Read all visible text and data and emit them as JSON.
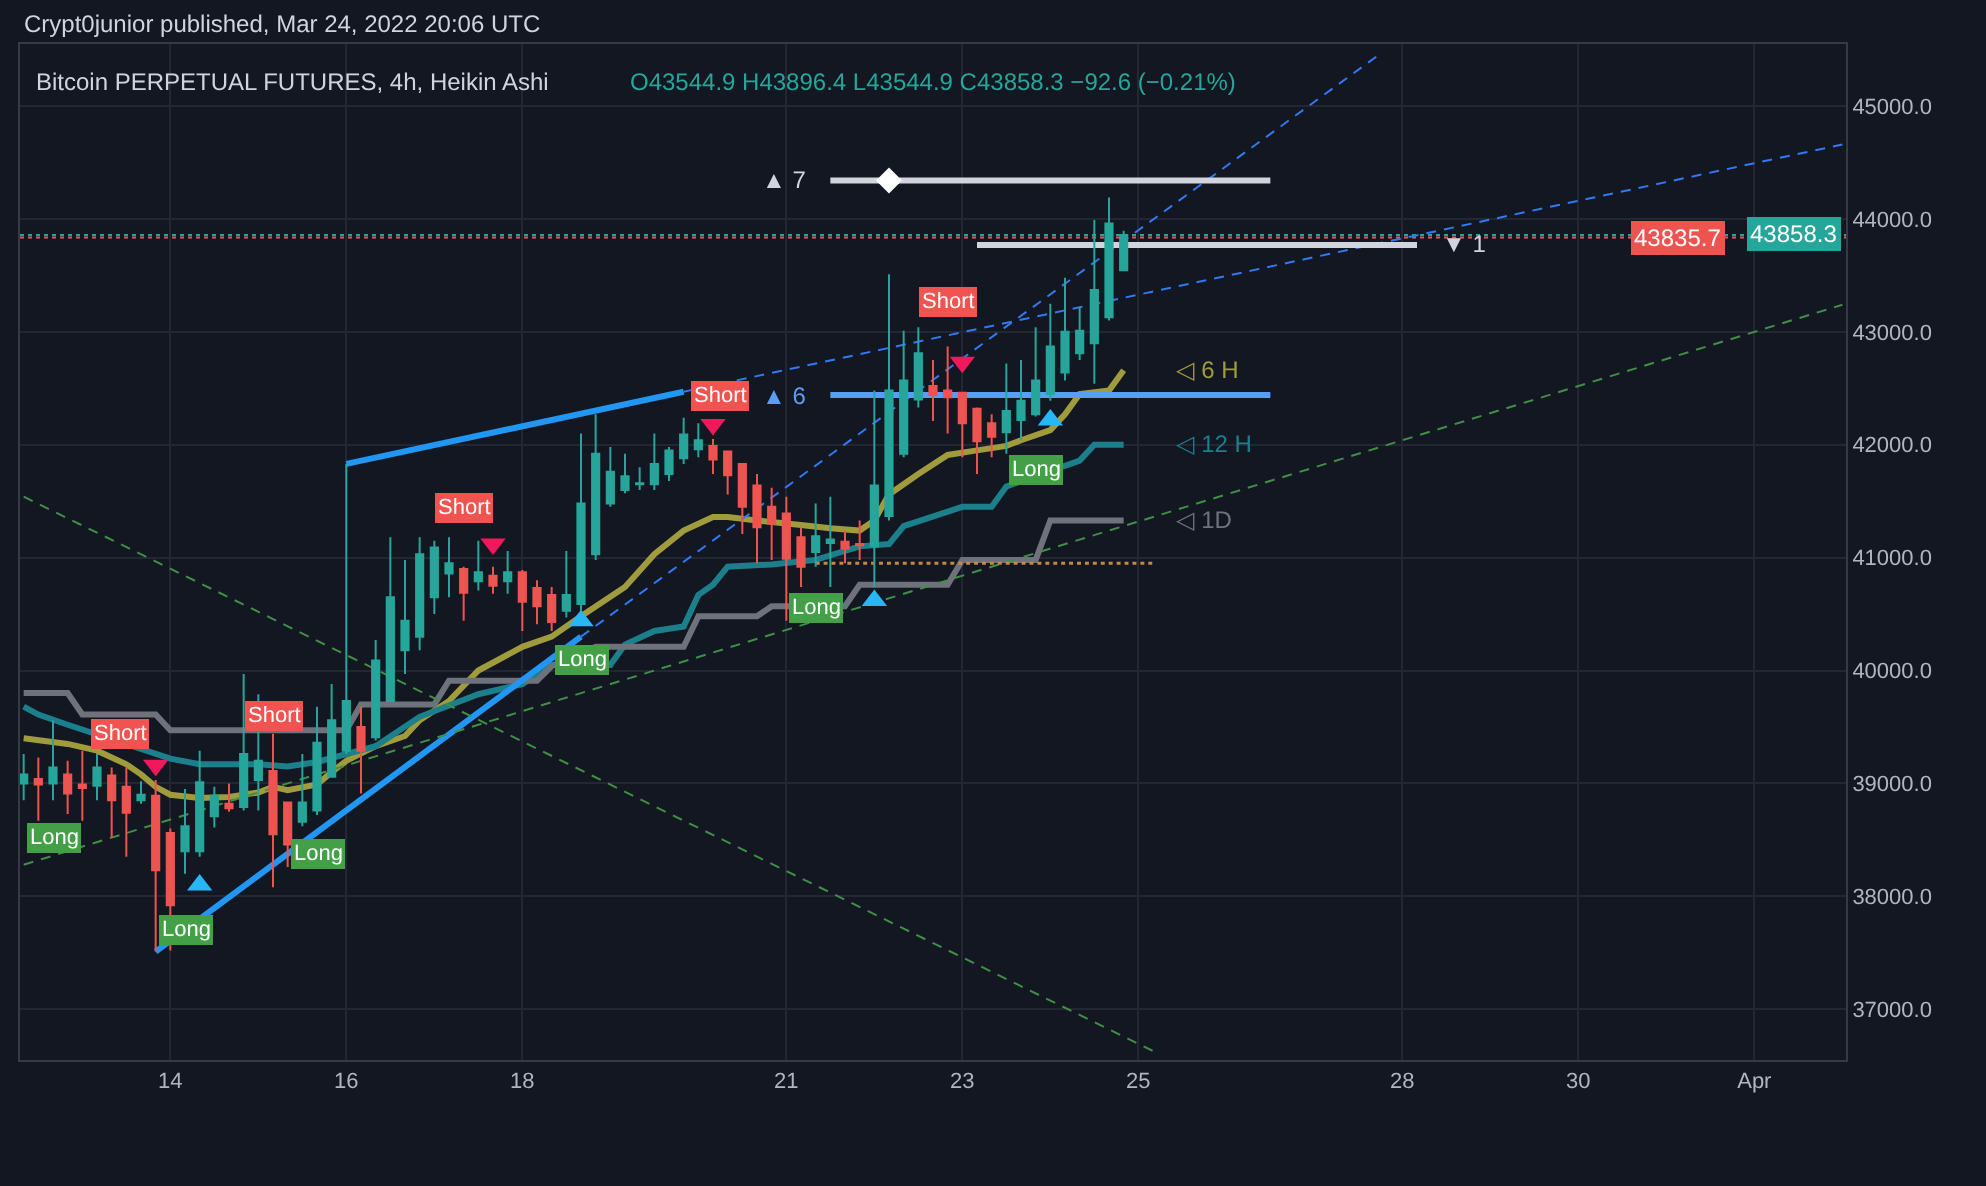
{
  "chart_data": {
    "type": "candlestick",
    "title": "Bitcoin PERPETUAL FUTURES, 4h, Heikin Ashi",
    "x": [
      "2022-03-12T08:00",
      "2022-03-12T12:00",
      "2022-03-12T16:00",
      "2022-03-12T20:00",
      "2022-03-13T00:00",
      "2022-03-13T04:00",
      "2022-03-13T08:00",
      "2022-03-13T12:00",
      "2022-03-13T16:00",
      "2022-03-13T20:00",
      "2022-03-14T00:00",
      "2022-03-14T04:00",
      "2022-03-14T08:00",
      "2022-03-14T12:00",
      "2022-03-14T16:00",
      "2022-03-14T20:00",
      "2022-03-15T00:00",
      "2022-03-15T04:00",
      "2022-03-15T08:00",
      "2022-03-15T12:00",
      "2022-03-15T16:00",
      "2022-03-15T20:00",
      "2022-03-16T00:00",
      "2022-03-16T04:00",
      "2022-03-16T08:00",
      "2022-03-16T12:00",
      "2022-03-16T16:00",
      "2022-03-16T20:00",
      "2022-03-17T00:00",
      "2022-03-17T04:00",
      "2022-03-17T08:00",
      "2022-03-17T12:00",
      "2022-03-17T16:00",
      "2022-03-17T20:00",
      "2022-03-18T00:00",
      "2022-03-18T04:00",
      "2022-03-18T08:00",
      "2022-03-18T12:00",
      "2022-03-18T16:00",
      "2022-03-18T20:00",
      "2022-03-19T00:00",
      "2022-03-19T04:00",
      "2022-03-19T08:00",
      "2022-03-19T12:00",
      "2022-03-19T16:00",
      "2022-03-19T20:00",
      "2022-03-20T00:00",
      "2022-03-20T04:00",
      "2022-03-20T08:00",
      "2022-03-20T12:00",
      "2022-03-20T16:00",
      "2022-03-20T20:00",
      "2022-03-21T00:00",
      "2022-03-21T04:00",
      "2022-03-21T08:00",
      "2022-03-21T12:00",
      "2022-03-21T16:00",
      "2022-03-21T20:00",
      "2022-03-22T00:00",
      "2022-03-22T04:00",
      "2022-03-22T08:00",
      "2022-03-22T12:00",
      "2022-03-22T16:00",
      "2022-03-22T20:00",
      "2022-03-23T00:00",
      "2022-03-23T04:00",
      "2022-03-23T08:00",
      "2022-03-23T12:00",
      "2022-03-23T16:00",
      "2022-03-23T20:00",
      "2022-03-24T00:00",
      "2022-03-24T04:00",
      "2022-03-24T08:00",
      "2022-03-24T12:00",
      "2022-03-24T16:00",
      "2022-03-24T20:00"
    ],
    "ohlc": [
      [
        39000,
        39260,
        38850,
        39080
      ],
      [
        39040,
        39230,
        38670,
        38990
      ],
      [
        39000,
        39560,
        38850,
        39140
      ],
      [
        39080,
        39200,
        38730,
        38910
      ],
      [
        38990,
        39290,
        38670,
        38960
      ],
      [
        38980,
        39260,
        38850,
        39140
      ],
      [
        39070,
        39140,
        38520,
        38850
      ],
      [
        38970,
        39140,
        38350,
        38740
      ],
      [
        38850,
        39020,
        38820,
        38900
      ],
      [
        38890,
        39030,
        37510,
        38230
      ],
      [
        38560,
        38600,
        37520,
        37920
      ],
      [
        38400,
        38950,
        38200,
        38620
      ],
      [
        38400,
        39290,
        38350,
        39010
      ],
      [
        38710,
        38970,
        38610,
        38890
      ],
      [
        38820,
        39000,
        38750,
        38780
      ],
      [
        38790,
        39970,
        38760,
        39260
      ],
      [
        39030,
        39790,
        38760,
        39200
      ],
      [
        39110,
        39440,
        38080,
        38550
      ],
      [
        38830,
        38830,
        38260,
        38460
      ],
      [
        38660,
        39260,
        38620,
        38830
      ],
      [
        38760,
        39680,
        38720,
        39360
      ],
      [
        39060,
        39880,
        39060,
        39560
      ],
      [
        39290,
        41830,
        39260,
        39730
      ],
      [
        39500,
        39680,
        38910,
        39290
      ],
      [
        39410,
        40270,
        39380,
        40090
      ],
      [
        39730,
        41180,
        39730,
        40650
      ],
      [
        40180,
        40980,
        39970,
        40440
      ],
      [
        40300,
        41180,
        40180,
        41030
      ],
      [
        40650,
        41150,
        40500,
        41090
      ],
      [
        40860,
        41180,
        40650,
        40950
      ],
      [
        40900,
        40920,
        40440,
        40690
      ],
      [
        40790,
        41150,
        40710,
        40870
      ],
      [
        40840,
        40920,
        40680,
        40750
      ],
      [
        40790,
        41060,
        40680,
        40870
      ],
      [
        40870,
        40890,
        40350,
        40610
      ],
      [
        40730,
        40800,
        40410,
        40570
      ],
      [
        40670,
        40740,
        40350,
        40430
      ],
      [
        40530,
        41060,
        40470,
        40670
      ],
      [
        40590,
        42100,
        40530,
        41480
      ],
      [
        41030,
        42270,
        40980,
        41920
      ],
      [
        41480,
        41980,
        41450,
        41760
      ],
      [
        41600,
        41920,
        41570,
        41720
      ],
      [
        41650,
        41800,
        41600,
        41660
      ],
      [
        41650,
        42100,
        41600,
        41830
      ],
      [
        41740,
        41980,
        41680,
        41950
      ],
      [
        41880,
        42240,
        41830,
        42090
      ],
      [
        41960,
        42190,
        41890,
        42040
      ],
      [
        41990,
        42050,
        41740,
        41870
      ],
      [
        41940,
        41940,
        41560,
        41730
      ],
      [
        41830,
        41830,
        41210,
        41450
      ],
      [
        41640,
        41740,
        40950,
        41270
      ],
      [
        41450,
        41620,
        40980,
        41300
      ],
      [
        41390,
        41540,
        40440,
        40990
      ],
      [
        41180,
        41270,
        40740,
        40920
      ],
      [
        41050,
        41480,
        40920,
        41190
      ],
      [
        41130,
        41540,
        40740,
        41160
      ],
      [
        41140,
        41240,
        40950,
        41080
      ],
      [
        41120,
        41330,
        40980,
        41110
      ],
      [
        41100,
        42480,
        40740,
        41640
      ],
      [
        41370,
        43510,
        41330,
        42480
      ],
      [
        41920,
        43010,
        41890,
        42570
      ],
      [
        42400,
        43040,
        42330,
        42810
      ],
      [
        42520,
        42750,
        42210,
        42440
      ],
      [
        42480,
        42870,
        42100,
        42420
      ],
      [
        42460,
        42460,
        41890,
        42190
      ],
      [
        42320,
        42330,
        41740,
        42030
      ],
      [
        42190,
        42270,
        41890,
        42070
      ],
      [
        42110,
        42720,
        41920,
        42300
      ],
      [
        42220,
        42750,
        42040,
        42390
      ],
      [
        42270,
        43040,
        42250,
        42570
      ],
      [
        42450,
        43250,
        42390,
        42870
      ],
      [
        42640,
        43480,
        42570,
        43000
      ],
      [
        42810,
        43220,
        42750,
        43010
      ],
      [
        42900,
        43990,
        42540,
        43370
      ],
      [
        43130,
        44190,
        43100,
        43960
      ],
      [
        43544.9,
        43896.4,
        43544.9,
        43858.3
      ]
    ],
    "colors": [
      "#26a69a",
      "#ef5350",
      "#26a69a",
      "#ef5350",
      "#ef5350",
      "#26a69a",
      "#ef5350",
      "#ef5350",
      "#26a69a",
      "#ef5350",
      "#ef5350",
      "#26a69a",
      "#26a69a",
      "#26a69a",
      "#ef5350",
      "#26a69a",
      "#26a69a",
      "#ef5350",
      "#ef5350",
      "#26a69a",
      "#26a69a",
      "#26a69a",
      "#26a69a",
      "#ef5350",
      "#26a69a",
      "#26a69a",
      "#26a69a",
      "#26a69a",
      "#26a69a",
      "#26a69a",
      "#ef5350",
      "#26a69a",
      "#ef5350",
      "#26a69a",
      "#ef5350",
      "#ef5350",
      "#ef5350",
      "#26a69a",
      "#26a69a",
      "#26a69a",
      "#26a69a",
      "#26a69a",
      "#26a69a",
      "#26a69a",
      "#26a69a",
      "#26a69a",
      "#26a69a",
      "#ef5350",
      "#ef5350",
      "#ef5350",
      "#ef5350",
      "#ef5350",
      "#ef5350",
      "#ef5350",
      "#26a69a",
      "#26a69a",
      "#ef5350",
      "#ef5350",
      "#26a69a",
      "#26a69a",
      "#26a69a",
      "#26a69a",
      "#ef5350",
      "#ef5350",
      "#ef5350",
      "#ef5350",
      "#ef5350",
      "#26a69a",
      "#26a69a",
      "#26a69a",
      "#26a69a",
      "#26a69a",
      "#26a69a",
      "#26a69a",
      "#26a69a",
      "#26a69a"
    ],
    "series": [
      {
        "type": "line",
        "name": "◁ 6 H",
        "color": "#a09b3c",
        "x": [
          "2022-03-12T08:00",
          "2022-03-12T20:00",
          "2022-03-13T04:00",
          "2022-03-13T12:00",
          "2022-03-13T16:00",
          "2022-03-13T20:00",
          "2022-03-14T00:00",
          "2022-03-14T08:00",
          "2022-03-14T16:00",
          "2022-03-15T00:00",
          "2022-03-15T04:00",
          "2022-03-15T08:00",
          "2022-03-15T16:00",
          "2022-03-15T20:00",
          "2022-03-16T00:00",
          "2022-03-16T08:00",
          "2022-03-16T16:00",
          "2022-03-16T20:00",
          "2022-03-17T04:00",
          "2022-03-17T12:00",
          "2022-03-18T00:00",
          "2022-03-18T08:00",
          "2022-03-18T16:00",
          "2022-03-19T04:00",
          "2022-03-19T12:00",
          "2022-03-19T20:00",
          "2022-03-20T04:00",
          "2022-03-20T08:00",
          "2022-03-20T16:00",
          "2022-03-21T04:00",
          "2022-03-21T12:00",
          "2022-03-21T20:00",
          "2022-03-22T00:00",
          "2022-03-22T04:00",
          "2022-03-22T12:00",
          "2022-03-22T20:00",
          "2022-03-23T04:00",
          "2022-03-23T12:00",
          "2022-03-23T16:00",
          "2022-03-24T00:00",
          "2022-03-24T04:00",
          "2022-03-24T08:00",
          "2022-03-24T16:00",
          "2022-03-24T20:00"
        ],
        "values": [
          39400,
          39350,
          39290,
          39170,
          39080,
          38970,
          38900,
          38870,
          38880,
          38920,
          38970,
          38940,
          38990,
          39100,
          39200,
          39330,
          39420,
          39560,
          39730,
          40000,
          40210,
          40300,
          40480,
          40740,
          41030,
          41240,
          41360,
          41360,
          41330,
          41290,
          41260,
          41240,
          41330,
          41560,
          41740,
          41910,
          41950,
          41990,
          42040,
          42130,
          42270,
          42450,
          42480,
          42660
        ]
      },
      {
        "type": "line",
        "name": "◁ 12 H",
        "color": "#1b7f8c",
        "x": [
          "2022-03-12T08:00",
          "2022-03-12T12:00",
          "2022-03-12T20:00",
          "2022-03-14T00:00",
          "2022-03-14T08:00",
          "2022-03-15T00:00",
          "2022-03-15T08:00",
          "2022-03-15T16:00",
          "2022-03-16T08:00",
          "2022-03-16T20:00",
          "2022-03-17T12:00",
          "2022-03-18T00:00",
          "2022-03-18T08:00",
          "2022-03-19T00:00",
          "2022-03-19T04:00",
          "2022-03-19T12:00",
          "2022-03-19T20:00",
          "2022-03-20T00:00",
          "2022-03-20T04:00",
          "2022-03-20T08:00",
          "2022-03-20T20:00",
          "2022-03-21T08:00",
          "2022-03-21T20:00",
          "2022-03-22T04:00",
          "2022-03-22T08:00",
          "2022-03-23T00:00",
          "2022-03-23T08:00",
          "2022-03-23T12:00",
          "2022-03-24T08:00",
          "2022-03-24T12:00",
          "2022-03-24T20:00"
        ],
        "values": [
          39680,
          39610,
          39520,
          39220,
          39170,
          39170,
          39150,
          39190,
          39330,
          39590,
          39790,
          39880,
          40050,
          40050,
          40230,
          40350,
          40390,
          40670,
          40760,
          40920,
          40940,
          40980,
          41100,
          41120,
          41280,
          41450,
          41450,
          41630,
          41860,
          42000,
          42000
        ]
      },
      {
        "type": "line",
        "name": "◁ 1D",
        "color": "#6f727d",
        "x": [
          "2022-03-12T08:00",
          "2022-03-12T20:00",
          "2022-03-13T00:00",
          "2022-03-13T20:00",
          "2022-03-14T00:00",
          "2022-03-16T00:00",
          "2022-03-16T04:00",
          "2022-03-17T00:00",
          "2022-03-17T04:00",
          "2022-03-18T04:00",
          "2022-03-18T08:00",
          "2022-03-18T20:00",
          "2022-03-19T20:00",
          "2022-03-20T00:00",
          "2022-03-20T16:00",
          "2022-03-20T20:00",
          "2022-03-21T16:00",
          "2022-03-21T20:00",
          "2022-03-22T20:00",
          "2022-03-23T00:00",
          "2022-03-23T20:00",
          "2022-03-24T00:00",
          "2022-03-24T20:00"
        ],
        "values": [
          39800,
          39800,
          39610,
          39610,
          39470,
          39470,
          39700,
          39700,
          39910,
          39910,
          40040,
          40210,
          40210,
          40480,
          40480,
          40570,
          40570,
          40760,
          40760,
          40980,
          40980,
          41330,
          41330
        ]
      },
      {
        "type": "line",
        "color": "#2196f3",
        "x": [
          "2022-03-13T20:00",
          "2022-03-18T16:00"
        ],
        "values": [
          37510,
          40300
        ]
      },
      {
        "type": "line",
        "color": "#2196f3",
        "x": [
          "2022-03-16T00:00",
          "2022-03-19T20:00"
        ],
        "values": [
          41830,
          42470
        ]
      },
      {
        "type": "line",
        "color": "#3179f5",
        "line_style": "dashed",
        "x": [
          "2022-03-18T16:00",
          "2022-03-27T17:00"
        ],
        "values": [
          40300,
          45440
        ]
      },
      {
        "type": "line",
        "color": "#3179f5",
        "line_style": "dashed",
        "x": [
          "2022-03-19T20:00",
          "2022-04-02T00:00"
        ],
        "values": [
          42470,
          44660
        ]
      },
      {
        "type": "line",
        "color": "#3f8f46",
        "line_style": "dashed",
        "x": [
          "2022-03-12T08:00",
          "2022-03-25T04:00"
        ],
        "values": [
          41540,
          36630
        ]
      },
      {
        "type": "line",
        "color": "#3f8f46",
        "line_style": "dashed",
        "x": [
          "2022-03-12T08:00",
          "2022-04-02T00:00"
        ],
        "values": [
          38280,
          43240
        ]
      },
      {
        "type": "line",
        "color": "#d1d4dc",
        "x": [
          "2022-03-21T12:00",
          "2022-03-26T12:00"
        ],
        "values": [
          44340,
          44340
        ]
      },
      {
        "type": "scatter",
        "color": "#ffffff",
        "marker": "diamond",
        "x": [
          "2022-03-22T04:00"
        ],
        "values": [
          44340
        ]
      },
      {
        "type": "line",
        "color": "#d1d4dc",
        "x": [
          "2022-03-23T04:00",
          "2022-03-28T04:00"
        ],
        "values": [
          43770,
          43770
        ]
      },
      {
        "type": "line",
        "color": "#5b9cf6",
        "x": [
          "2022-03-21T12:00",
          "2022-03-26T12:00"
        ],
        "values": [
          42440,
          42440
        ]
      },
      {
        "type": "line",
        "color": "#c68a3c",
        "line_style": "dotted",
        "x": [
          "2022-03-21T08:00",
          "2022-03-25T04:00"
        ],
        "values": [
          40950,
          40950
        ]
      },
      {
        "type": "scatter",
        "color": "#29b6f6",
        "marker": "triangle",
        "x": [
          "2022-03-14T08:00",
          "2022-03-18T16:00",
          "2022-03-22T00:00",
          "2022-03-24T00:00"
        ],
        "values": [
          38100,
          40440,
          40620,
          42220
        ]
      },
      {
        "type": "scatter",
        "color": "#f2185c",
        "marker": "triangle",
        "x": [
          "2022-03-13T20:00",
          "2022-03-17T16:00",
          "2022-03-20T04:00",
          "2022-03-23T00:00"
        ],
        "values": [
          39160,
          41120,
          42180,
          42730
        ]
      },
      {
        "type": "scatter",
        "name": "Long",
        "color": "#43a047",
        "marker": "square",
        "x": [
          "2022-03-12T16:00",
          "2022-03-14T04:00",
          "2022-03-15T16:00",
          "2022-03-18T16:00",
          "2022-03-21T08:00",
          "2022-03-23T20:00"
        ],
        "values": [
          38510,
          37710,
          38370,
          40090,
          40560,
          41770
        ]
      },
      {
        "type": "scatter",
        "name": "Short",
        "color": "#f05350",
        "marker": "square",
        "x": [
          "2022-03-13T10:00",
          "2022-03-15T04:00",
          "2022-03-17T08:00",
          "2022-03-20T06:00",
          "2022-03-22T20:00"
        ],
        "values": [
          39430,
          39600,
          41440,
          42430,
          43260
        ]
      }
    ],
    "ref_lines": [
      {
        "axis": "y",
        "value": 43858.3,
        "label": "43858.3",
        "color": "#26a69a",
        "line_style": "dotted"
      },
      {
        "axis": "y",
        "value": 43835.7,
        "label": "43835.7",
        "color": "#ef5350",
        "line_style": "dotted"
      }
    ],
    "annotations": [
      "Crypt0junior published, Mar 24, 2022 20:06 UTC",
      "O43544.9 H43896.4 L43544.9 C43858.3 −92.6 (−0.21%)",
      {
        "text": "▲ 7",
        "x": "2022-03-21T12:00",
        "y": 44340
      },
      {
        "text": "▲ 6",
        "x": "2022-03-21T12:00",
        "y": 42440
      },
      {
        "text": "▼ 1",
        "x": "2022-03-28T04:00",
        "y": 43770
      }
    ],
    "xlim": [
      "2022-03-12T07:00",
      "2022-04-02T01:00"
    ],
    "xticks": [
      {
        "value": "2022-03-14",
        "label": "14"
      },
      {
        "value": "2022-03-16",
        "label": "16"
      },
      {
        "value": "2022-03-18",
        "label": "18"
      },
      {
        "value": "2022-03-21",
        "label": "21"
      },
      {
        "value": "2022-03-23",
        "label": "23"
      },
      {
        "value": "2022-03-25",
        "label": "25"
      },
      {
        "value": "2022-03-28",
        "label": "28"
      },
      {
        "value": "2022-03-30",
        "label": "30"
      },
      {
        "value": "2022-04-01",
        "label": "Apr"
      }
    ],
    "ylim": [
      36550,
      45550
    ],
    "yticks": [
      {
        "value": 37000,
        "label": "37000.0"
      },
      {
        "value": 38000,
        "label": "38000.0"
      },
      {
        "value": 39000,
        "label": "39000.0"
      },
      {
        "value": 40000,
        "label": "40000.0"
      },
      {
        "value": 41000,
        "label": "41000.0"
      },
      {
        "value": 42000,
        "label": "42000.0"
      },
      {
        "value": 43000,
        "label": "43000.0"
      },
      {
        "value": 44000,
        "label": "44000.0"
      },
      {
        "value": 45000,
        "label": "45000.0"
      }
    ],
    "grid": true
  }
}
